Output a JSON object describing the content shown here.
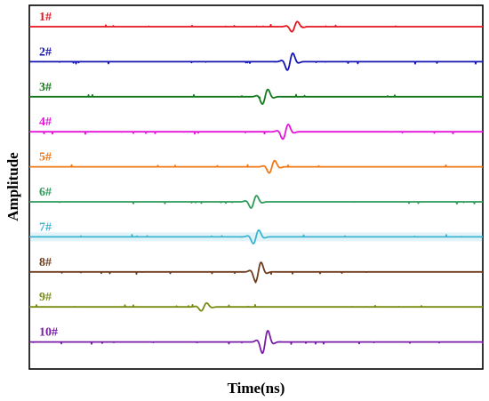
{
  "chart_data": {
    "type": "line",
    "title": "",
    "xlabel": "Time(ns)",
    "ylabel": "Amplitude",
    "grid": false,
    "legend": "none",
    "ticks_shown": false,
    "series": [
      {
        "label": "1#",
        "color": "#e8141e",
        "pulse_center": 0.585,
        "relative_amplitude": 0.45,
        "glow": false
      },
      {
        "label": "2#",
        "color": "#1414b4",
        "pulse_center": 0.575,
        "relative_amplitude": 0.75,
        "glow": false
      },
      {
        "label": "3#",
        "color": "#157a1e",
        "pulse_center": 0.52,
        "relative_amplitude": 0.65,
        "glow": false
      },
      {
        "label": "4#",
        "color": "#e614dc",
        "pulse_center": 0.565,
        "relative_amplitude": 0.65,
        "glow": false
      },
      {
        "label": "5#",
        "color": "#f07814",
        "pulse_center": 0.535,
        "relative_amplitude": 0.55,
        "glow": false
      },
      {
        "label": "6#",
        "color": "#2d9b5a",
        "pulse_center": 0.495,
        "relative_amplitude": 0.55,
        "glow": false
      },
      {
        "label": "7#",
        "color": "#3cb4d2",
        "pulse_center": 0.5,
        "relative_amplitude": 0.6,
        "glow": true
      },
      {
        "label": "8#",
        "color": "#6e3c1e",
        "pulse_center": 0.505,
        "relative_amplitude": 0.85,
        "glow": false
      },
      {
        "label": "9#",
        "color": "#788c14",
        "pulse_center": 0.385,
        "relative_amplitude": 0.35,
        "glow": false
      },
      {
        "label": "10#",
        "color": "#7a1eaa",
        "pulse_center": 0.52,
        "relative_amplitude": 1.0,
        "glow": false
      }
    ]
  }
}
